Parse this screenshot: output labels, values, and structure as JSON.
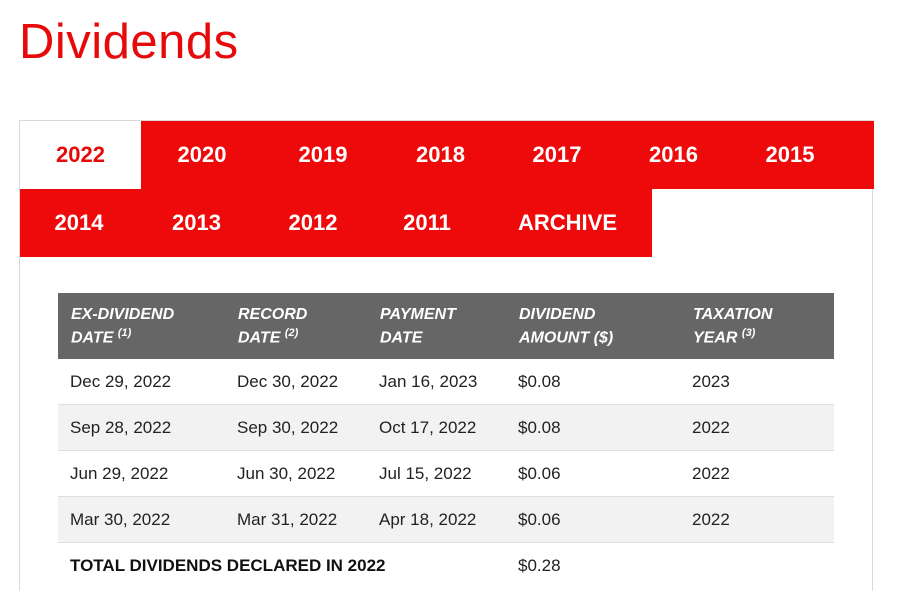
{
  "page_title": "Dividends",
  "colors": {
    "brand_red": "#ee0a0a",
    "header_gray": "#666666",
    "row_alt": "#f2f2f2"
  },
  "tabs_row1": [
    "2022",
    "2020",
    "2019",
    "2018",
    "2017",
    "2016",
    "2015"
  ],
  "tabs_row2": [
    "2014",
    "2013",
    "2012",
    "2011",
    "ARCHIVE"
  ],
  "active_tab": "2022",
  "table": {
    "headers": [
      {
        "line1": "EX-DIVIDEND",
        "line2": "DATE",
        "sup": "(1)"
      },
      {
        "line1": "RECORD",
        "line2": "DATE",
        "sup": "(2)"
      },
      {
        "line1": "PAYMENT",
        "line2": "DATE",
        "sup": ""
      },
      {
        "line1": "DIVIDEND",
        "line2": "AMOUNT ($)",
        "sup": ""
      },
      {
        "line1": "TAXATION",
        "line2": "YEAR",
        "sup": "(3)"
      }
    ],
    "rows": [
      [
        "Dec 29, 2022",
        "Dec 30, 2022",
        "Jan 16, 2023",
        "$0.08",
        "2023"
      ],
      [
        "Sep 28, 2022",
        "Sep 30, 2022",
        "Oct 17, 2022",
        "$0.08",
        "2022"
      ],
      [
        "Jun 29, 2022",
        "Jun 30, 2022",
        "Jul 15, 2022",
        "$0.06",
        "2022"
      ],
      [
        "Mar 30, 2022",
        "Mar 31, 2022",
        "Apr 18, 2022",
        "$0.06",
        "2022"
      ]
    ],
    "total_label": "TOTAL DIVIDENDS DECLARED IN 2022",
    "total_value": "$0.28"
  }
}
